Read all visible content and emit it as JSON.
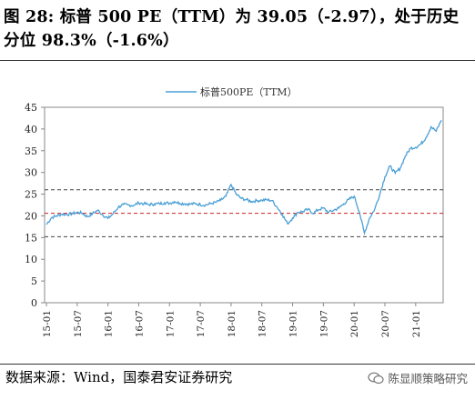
{
  "header": {
    "title": "图 28:  标普 500 PE（TTM）为 39.05（-2.97），处于历史分位 98.3%（-1.6%）"
  },
  "footer": {
    "source": "数据来源：Wind，国泰君安证券研究",
    "watermark": "陈显顺策略研究"
  },
  "colors": {
    "series": "#4a9fd6",
    "ref_upper": "#444444",
    "ref_mean": "#cc2222",
    "ref_lower": "#444444"
  },
  "chart_data": {
    "type": "line",
    "title": "",
    "xlabel": "",
    "ylabel": "",
    "ylim": [
      0,
      45
    ],
    "yticks": [
      0,
      5,
      10,
      15,
      20,
      25,
      30,
      35,
      40,
      45
    ],
    "xticks": [
      "15-01",
      "15-07",
      "16-01",
      "16-07",
      "17-01",
      "17-07",
      "18-01",
      "18-07",
      "19-01",
      "19-07",
      "20-01",
      "20-07",
      "21-01"
    ],
    "legend": {
      "position": "top-center",
      "entries": [
        "标普500PE（TTM）"
      ]
    },
    "reference_lines": [
      {
        "name": "upper",
        "value": 26.0,
        "style": "dashed"
      },
      {
        "name": "mean",
        "value": 20.6,
        "style": "dashed"
      },
      {
        "name": "lower",
        "value": 15.2,
        "style": "dashed"
      }
    ],
    "series": [
      {
        "name": "标普500PE（TTM）",
        "x": [
          "15-01",
          "15-02",
          "15-03",
          "15-04",
          "15-05",
          "15-06",
          "15-07",
          "15-08",
          "15-09",
          "15-10",
          "15-11",
          "15-12",
          "16-01",
          "16-02",
          "16-03",
          "16-04",
          "16-05",
          "16-06",
          "16-07",
          "16-08",
          "16-09",
          "16-10",
          "16-11",
          "16-12",
          "17-01",
          "17-02",
          "17-03",
          "17-04",
          "17-05",
          "17-06",
          "17-07",
          "17-08",
          "17-09",
          "17-10",
          "17-11",
          "17-12",
          "18-01",
          "18-02",
          "18-03",
          "18-04",
          "18-05",
          "18-06",
          "18-07",
          "18-08",
          "18-09",
          "18-10",
          "18-11",
          "18-12",
          "19-01",
          "19-02",
          "19-03",
          "19-04",
          "19-05",
          "19-06",
          "19-07",
          "19-08",
          "19-09",
          "19-10",
          "19-11",
          "19-12",
          "20-01",
          "20-02",
          "20-03",
          "20-04",
          "20-05",
          "20-06",
          "20-07",
          "20-08",
          "20-09",
          "20-10",
          "20-11",
          "20-12",
          "21-01",
          "21-02",
          "21-03",
          "21-04",
          "21-05",
          "21-06"
        ],
        "values": [
          18.0,
          19.6,
          20.0,
          20.4,
          20.3,
          20.5,
          20.8,
          20.6,
          19.8,
          20.5,
          21.3,
          20.2,
          19.4,
          20.5,
          22.0,
          22.6,
          22.5,
          22.4,
          23.0,
          22.8,
          22.6,
          22.7,
          22.8,
          23.0,
          22.9,
          23.3,
          22.9,
          22.8,
          22.7,
          22.8,
          22.6,
          22.5,
          22.8,
          23.1,
          23.6,
          24.5,
          27.2,
          25.0,
          24.0,
          23.7,
          23.3,
          23.5,
          23.6,
          23.7,
          23.5,
          22.0,
          20.3,
          18.2,
          19.5,
          20.8,
          21.0,
          21.5,
          20.6,
          21.4,
          21.8,
          20.8,
          21.3,
          21.8,
          22.8,
          23.8,
          24.5,
          21.0,
          16.0,
          19.5,
          21.5,
          25.0,
          29.0,
          31.5,
          29.8,
          31.0,
          33.8,
          35.6,
          35.8,
          36.5,
          38.0,
          40.5,
          39.5,
          42.0
        ]
      }
    ]
  }
}
